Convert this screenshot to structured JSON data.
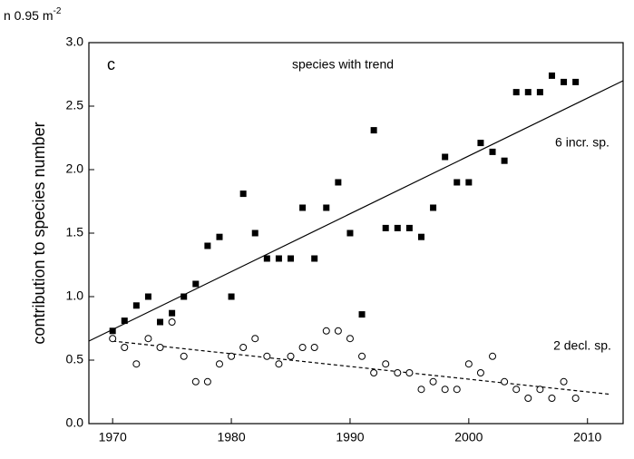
{
  "chart_data": {
    "type": "scatter",
    "unit_label": "n 0.95 m",
    "unit_exponent": "-2",
    "panel_label": "c",
    "title": "species with trend",
    "y_label": "contribution to species number",
    "xlim": [
      1968,
      2013
    ],
    "ylim": [
      0,
      3
    ],
    "xticks": [
      1970,
      1980,
      1990,
      2000,
      2010
    ],
    "yticks": [
      {
        "value": 0,
        "label": "0.0"
      },
      0.5,
      {
        "value": 1,
        "label": "1.0"
      },
      1.5,
      {
        "value": 2,
        "label": "2.0"
      },
      2.5,
      {
        "value": 3,
        "label": "3.0"
      }
    ],
    "x": [
      1970,
      1971,
      1972,
      1973,
      1974,
      1975,
      1976,
      1977,
      1978,
      1979,
      1980,
      1981,
      1982,
      1983,
      1984,
      1985,
      1986,
      1987,
      1988,
      1989,
      1990,
      1991,
      1992,
      1993,
      1994,
      1995,
      1996,
      1997,
      1998,
      1999,
      2000,
      2001,
      2002,
      2003,
      2004,
      2005,
      2006,
      2007,
      2008,
      2009
    ],
    "series": [
      {
        "name": "6 incr. sp.",
        "color": "#000000",
        "marker": "square",
        "values": [
          0.73,
          0.81,
          0.93,
          1.0,
          0.8,
          0.87,
          1.0,
          1.1,
          1.4,
          1.47,
          1.0,
          1.81,
          1.5,
          1.3,
          1.3,
          1.3,
          1.7,
          1.3,
          1.7,
          1.9,
          1.5,
          0.86,
          2.31,
          1.54,
          1.54,
          1.54,
          1.47,
          1.7,
          2.1,
          1.9,
          1.9,
          2.21,
          2.14,
          2.07,
          2.61,
          2.61,
          2.61,
          2.74,
          2.69,
          2.69
        ],
        "trend": {
          "x": [
            1968,
            2013
          ],
          "y": [
            0.65,
            2.7
          ],
          "style": "solid"
        }
      },
      {
        "name": "2 decl. sp.",
        "color": "#000000",
        "marker": "circle-open",
        "values": [
          0.67,
          0.6,
          0.47,
          0.67,
          0.6,
          0.8,
          0.53,
          0.33,
          0.33,
          0.47,
          0.53,
          0.6,
          0.67,
          0.53,
          0.47,
          0.53,
          0.6,
          0.6,
          0.73,
          0.73,
          0.67,
          0.53,
          0.4,
          0.47,
          0.4,
          0.4,
          0.27,
          0.33,
          0.27,
          0.27,
          0.47,
          0.4,
          0.53,
          0.33,
          0.27,
          0.2,
          0.27,
          0.2,
          0.33,
          0.2
        ],
        "trend": {
          "x": [
            1970,
            2012
          ],
          "y": [
            0.65,
            0.23
          ],
          "style": "dashed"
        }
      }
    ]
  }
}
